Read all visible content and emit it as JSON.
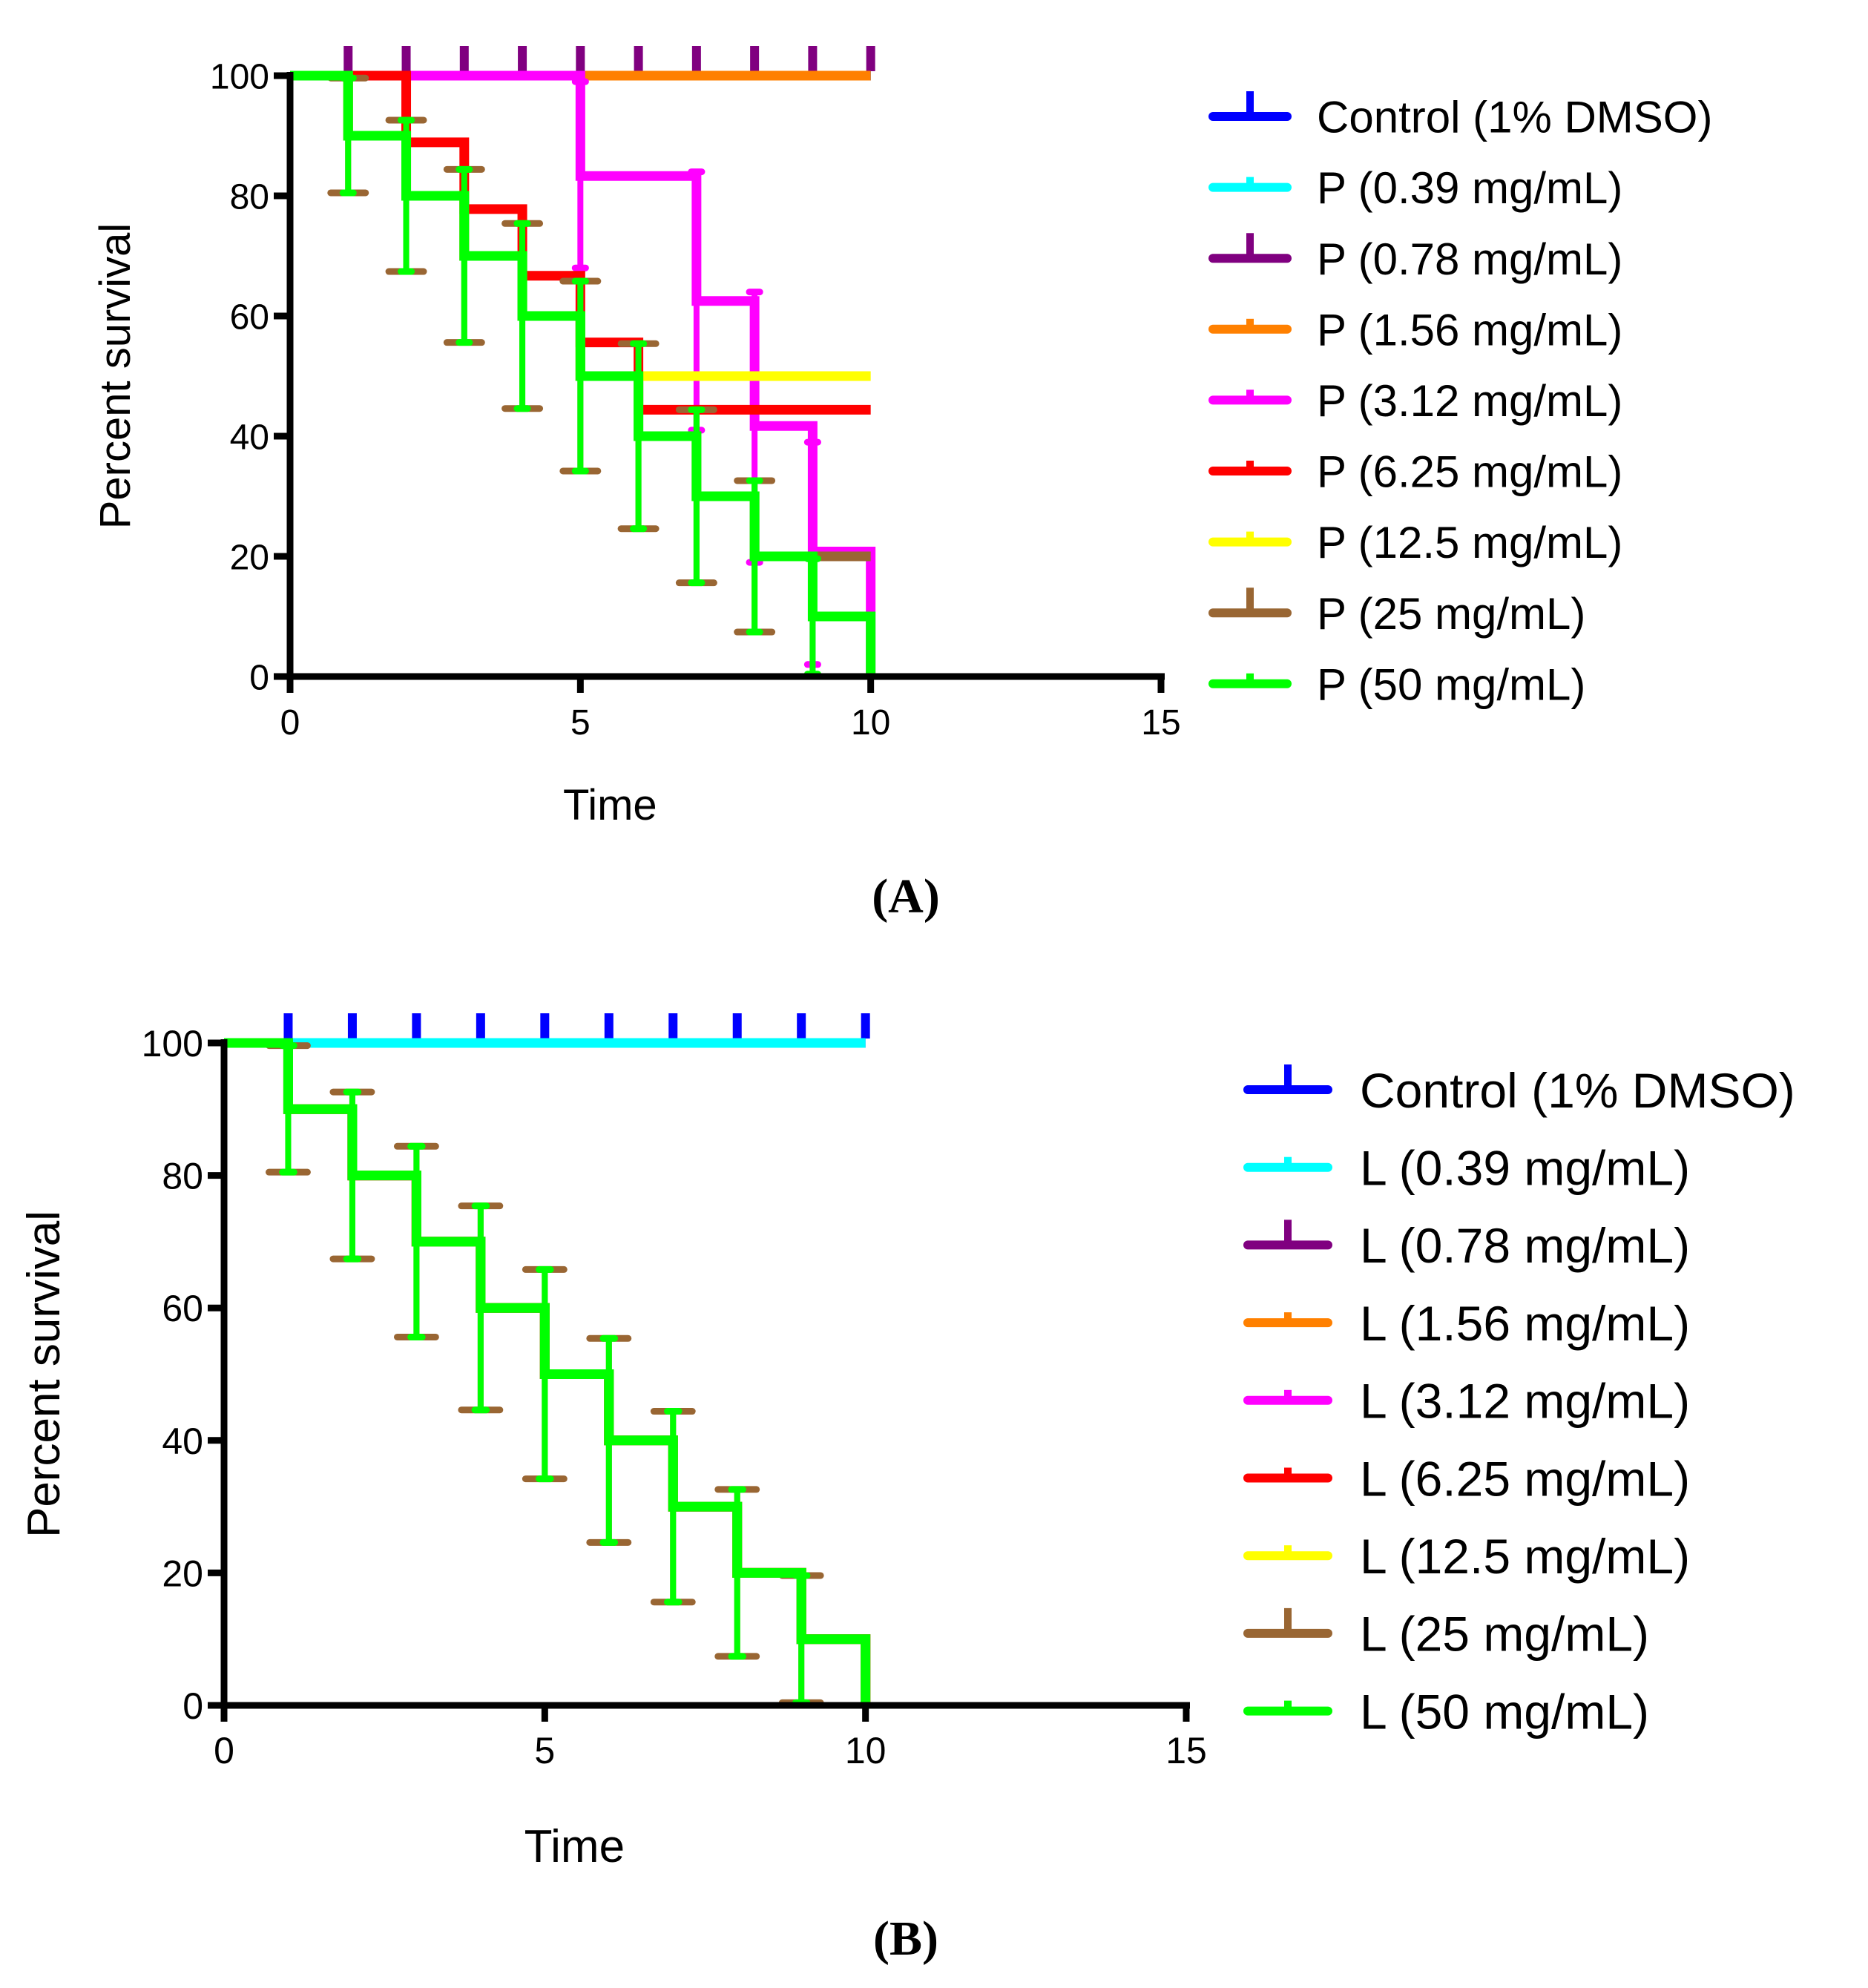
{
  "chart_data": [
    {
      "type": "line",
      "subtype": "kaplan-meier survival",
      "panel_label": "(A)",
      "xlabel": "Time",
      "ylabel": "Percent survival",
      "xlim": [
        0,
        15
      ],
      "ylim": [
        0,
        100
      ],
      "xticks": [
        0,
        5,
        10,
        15
      ],
      "yticks": [
        0,
        20,
        40,
        60,
        80,
        100
      ],
      "legend_position": "right",
      "series": [
        {
          "name": "Control (1% DMSO)",
          "color": "#0000ff",
          "t": [
            0,
            10
          ],
          "s": [
            100,
            100
          ]
        },
        {
          "name": "P (0.39 mg/mL)",
          "color": "#00ffff",
          "t": [
            0,
            10
          ],
          "s": [
            100,
            100
          ]
        },
        {
          "name": "P (0.78 mg/mL)",
          "color": "#800080",
          "t": [
            0,
            10
          ],
          "s": [
            100,
            100
          ],
          "censor_ticks": [
            1,
            2,
            3,
            4,
            5,
            6,
            7,
            8,
            9,
            10
          ]
        },
        {
          "name": "P (1.56 mg/mL)",
          "color": "#ff8000",
          "t": [
            0,
            10
          ],
          "s": [
            100,
            100
          ]
        },
        {
          "name": "P (3.12 mg/mL)",
          "color": "#ff00ff",
          "t": [
            0,
            5,
            7,
            8,
            9,
            10
          ],
          "s": [
            100,
            83.3,
            62.5,
            41.7,
            20.8,
            0
          ],
          "err": [
            [
              5,
              68,
              99
            ],
            [
              7,
              41,
              84
            ],
            [
              8,
              19,
              64
            ],
            [
              9,
              2,
              39
            ]
          ]
        },
        {
          "name": "P (6.25 mg/mL)",
          "color": "#ff0000",
          "t": [
            0,
            2,
            3,
            4,
            5,
            6,
            10
          ],
          "s": [
            100,
            88.9,
            77.8,
            66.7,
            55.6,
            44.4,
            44.4
          ]
        },
        {
          "name": "P (12.5 mg/mL)",
          "color": "#ffff00",
          "t": [
            0,
            1,
            2,
            3,
            4,
            5,
            6,
            10
          ],
          "s": [
            100,
            90,
            80,
            70,
            60,
            50,
            50,
            50
          ]
        },
        {
          "name": "P (25 mg/mL)",
          "color": "#996633",
          "t": [
            0,
            1,
            2,
            3,
            4,
            5,
            6,
            7,
            8,
            9,
            10
          ],
          "s": [
            100,
            90,
            80,
            70,
            60,
            50,
            40,
            30,
            20,
            20,
            20
          ],
          "err": [
            [
              1,
              80.5,
              99.6
            ],
            [
              2,
              67.4,
              92.6
            ],
            [
              3,
              55.6,
              84.4
            ],
            [
              4,
              44.6,
              75.4
            ],
            [
              5,
              34.2,
              65.8
            ],
            [
              6,
              24.6,
              55.4
            ],
            [
              7,
              15.6,
              44.4
            ],
            [
              8,
              7.4,
              32.6
            ]
          ]
        },
        {
          "name": "P (50 mg/mL)",
          "color": "#00ff00",
          "t": [
            0,
            1,
            2,
            3,
            4,
            5,
            6,
            7,
            8,
            9,
            10
          ],
          "s": [
            100,
            90,
            80,
            70,
            60,
            50,
            40,
            30,
            20,
            10,
            0
          ],
          "err": [
            [
              1,
              80.5,
              99.6
            ],
            [
              2,
              67.4,
              92.6
            ],
            [
              3,
              55.6,
              84.4
            ],
            [
              4,
              44.6,
              75.4
            ],
            [
              5,
              34.2,
              65.8
            ],
            [
              6,
              24.6,
              55.4
            ],
            [
              7,
              15.6,
              44.4
            ],
            [
              8,
              7.4,
              32.6
            ],
            [
              9,
              0.4,
              19.6
            ]
          ]
        }
      ]
    },
    {
      "type": "line",
      "subtype": "kaplan-meier survival",
      "panel_label": "(B)",
      "xlabel": "Time",
      "ylabel": "Percent survival",
      "xlim": [
        0,
        15
      ],
      "ylim": [
        0,
        100
      ],
      "xticks": [
        0,
        5,
        10,
        15
      ],
      "yticks": [
        0,
        20,
        40,
        60,
        80,
        100
      ],
      "legend_position": "right",
      "series": [
        {
          "name": "Control (1% DMSO)",
          "color": "#0000ff",
          "t": [
            0,
            10
          ],
          "s": [
            100,
            100
          ],
          "censor_ticks": [
            1,
            2,
            3,
            4,
            5,
            6,
            7,
            8,
            9,
            10
          ]
        },
        {
          "name": "L (0.39 mg/mL)",
          "color": "#00ffff",
          "t": [
            0,
            10
          ],
          "s": [
            100,
            100
          ]
        },
        {
          "name": "L (0.78 mg/mL)",
          "color": "#800080",
          "t": [
            0,
            1,
            2,
            3,
            4,
            5,
            6,
            7,
            8,
            9,
            10
          ],
          "s": [
            100,
            90,
            80,
            70,
            60,
            50,
            40,
            30,
            20,
            10,
            0
          ]
        },
        {
          "name": "L (1.56 mg/mL)",
          "color": "#ff8000",
          "t": [
            0,
            1,
            2,
            3,
            4,
            5,
            6,
            7,
            8,
            9,
            10
          ],
          "s": [
            100,
            90,
            80,
            70,
            60,
            50,
            40,
            30,
            20,
            10,
            0
          ]
        },
        {
          "name": "L (3.12 mg/mL)",
          "color": "#ff00ff",
          "t": [
            0,
            1,
            2,
            3,
            4,
            5,
            6,
            7,
            8,
            9,
            10
          ],
          "s": [
            100,
            90,
            80,
            70,
            60,
            50,
            40,
            30,
            20,
            10,
            0
          ]
        },
        {
          "name": "L (6.25 mg/mL)",
          "color": "#ff0000",
          "t": [
            0,
            1,
            2,
            3,
            4,
            5,
            6,
            7,
            8,
            9,
            10
          ],
          "s": [
            100,
            90,
            80,
            70,
            60,
            50,
            40,
            30,
            20,
            10,
            0
          ]
        },
        {
          "name": "L (12.5 mg/mL)",
          "color": "#ffff00",
          "t": [
            0,
            1,
            2,
            3,
            4,
            5,
            6,
            7,
            8,
            9,
            10
          ],
          "s": [
            100,
            90,
            80,
            70,
            60,
            50,
            40,
            30,
            20,
            10,
            0
          ]
        },
        {
          "name": "L (25 mg/mL)",
          "color": "#996633",
          "t": [
            0,
            1,
            2,
            3,
            4,
            5,
            6,
            7,
            8,
            9,
            10
          ],
          "s": [
            100,
            90,
            80,
            70,
            60,
            50,
            40,
            30,
            20,
            10,
            0
          ],
          "err": [
            [
              1,
              80.5,
              99.6
            ],
            [
              2,
              67.4,
              92.6
            ],
            [
              3,
              55.6,
              84.4
            ],
            [
              4,
              44.6,
              75.4
            ],
            [
              5,
              34.2,
              65.8
            ],
            [
              6,
              24.6,
              55.4
            ],
            [
              7,
              15.6,
              44.4
            ],
            [
              8,
              7.4,
              32.6
            ],
            [
              9,
              0.4,
              19.6
            ]
          ]
        },
        {
          "name": "L (50 mg/mL)",
          "color": "#00ff00",
          "t": [
            0,
            1,
            2,
            3,
            4,
            5,
            6,
            7,
            8,
            9,
            10
          ],
          "s": [
            100,
            90,
            80,
            70,
            60,
            50,
            40,
            30,
            20,
            10,
            0
          ],
          "err": [
            [
              1,
              80.5,
              99.6
            ],
            [
              2,
              67.4,
              92.6
            ],
            [
              3,
              55.6,
              84.4
            ],
            [
              4,
              44.6,
              75.4
            ],
            [
              5,
              34.2,
              65.8
            ],
            [
              6,
              24.6,
              55.4
            ],
            [
              7,
              15.6,
              44.4
            ],
            [
              8,
              7.4,
              32.6
            ],
            [
              9,
              0.4,
              19.6
            ]
          ]
        }
      ]
    }
  ]
}
